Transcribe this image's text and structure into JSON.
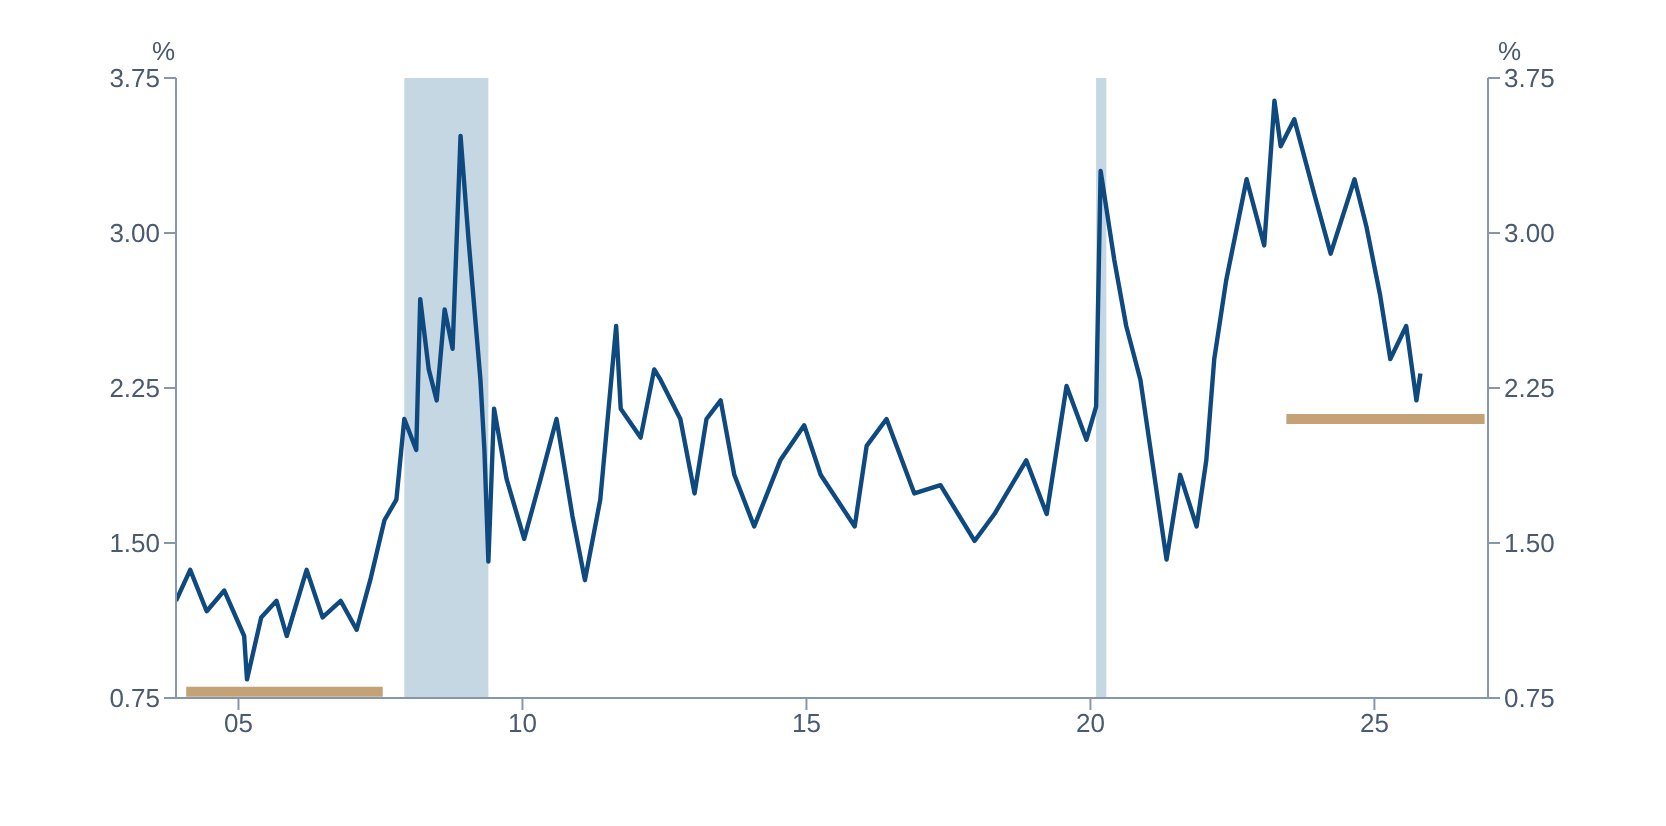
{
  "chart_data": {
    "type": "line",
    "ylabel": "%",
    "y2label": "%",
    "xlim": [
      2003.9,
      2027
    ],
    "xticks": [
      {
        "value": 2005,
        "label": "05"
      },
      {
        "value": 2010,
        "label": "10"
      },
      {
        "value": 2015,
        "label": "15"
      },
      {
        "value": 2020,
        "label": "20"
      },
      {
        "value": 2025,
        "label": "25"
      }
    ],
    "ylim": [
      0.75,
      3.75
    ],
    "yticks": [
      0.75,
      {
        "value": 1.5,
        "label": "1.50"
      },
      2.25,
      {
        "value": 3,
        "label": "3.00"
      },
      3.75
    ],
    "y2lim": [
      0.75,
      3.75
    ],
    "y2ticks": [
      0.75,
      {
        "value": 1.5,
        "label": "1.50"
      },
      2.25,
      {
        "value": 3,
        "label": "3.00"
      },
      3.75
    ],
    "grid": false,
    "legend": false,
    "bands": [
      {
        "axis": "x",
        "from": 2007.92,
        "to": 2009.4,
        "color": "#c5d7e2"
      },
      {
        "axis": "x",
        "from": 2020.1,
        "to": 2020.28,
        "color": "#c5d7e2"
      }
    ],
    "series": [
      {
        "color": "#0e4a80",
        "x": [
          2003.9,
          2004.15,
          2004.44,
          2004.75,
          2005.1,
          2005.15,
          2005.4,
          2005.67,
          2005.85,
          2006.2,
          2006.48,
          2006.8,
          2007.08,
          2007.32,
          2007.57,
          2007.78,
          2007.92,
          2008.13,
          2008.2,
          2008.35,
          2008.49,
          2008.63,
          2008.77,
          2008.91,
          2009.05,
          2009.26,
          2009.33,
          2009.4,
          2009.5,
          2009.72,
          2010.03,
          2010.32,
          2010.6,
          2010.88,
          2011.1,
          2011.37,
          2011.65,
          2011.73,
          2012.08,
          2012.32,
          2012.43,
          2012.78,
          2013.03,
          2013.24,
          2013.49,
          2013.73,
          2014.08,
          2014.54,
          2014.96,
          2015.25,
          2015.85,
          2016.06,
          2016.41,
          2016.9,
          2017.36,
          2017.96,
          2018.31,
          2018.87,
          2019.23,
          2019.58,
          2019.93,
          2020.1,
          2020.18,
          2020.42,
          2020.63,
          2020.88,
          2021.34,
          2021.58,
          2021.87,
          2022.04,
          2022.18,
          2022.39,
          2022.75,
          2023.06,
          2023.24,
          2023.35,
          2023.59,
          2023.94,
          2024.23,
          2024.65,
          2024.86,
          2025.1,
          2025.28,
          2025.56,
          2025.74,
          2025.81
        ],
        "values": [
          1.22,
          1.37,
          1.17,
          1.27,
          1.05,
          0.84,
          1.14,
          1.22,
          1.05,
          1.37,
          1.14,
          1.22,
          1.08,
          1.32,
          1.61,
          1.71,
          2.1,
          1.95,
          2.68,
          2.34,
          2.19,
          2.63,
          2.44,
          3.47,
          2.97,
          2.29,
          1.95,
          1.41,
          2.15,
          1.81,
          1.52,
          1.81,
          2.1,
          1.63,
          1.32,
          1.71,
          2.55,
          2.15,
          2.01,
          2.34,
          2.29,
          2.1,
          1.74,
          2.1,
          2.19,
          1.83,
          1.58,
          1.9,
          2.07,
          1.83,
          1.58,
          1.97,
          2.1,
          1.74,
          1.78,
          1.51,
          1.64,
          1.9,
          1.64,
          2.26,
          2.0,
          2.16,
          3.3,
          2.87,
          2.55,
          2.29,
          1.42,
          1.83,
          1.58,
          1.9,
          2.39,
          2.77,
          3.26,
          2.94,
          3.64,
          3.42,
          3.55,
          3.19,
          2.9,
          3.26,
          3.03,
          2.7,
          2.39,
          2.55,
          2.19,
          2.32
        ]
      },
      {
        "color": "#c4a276",
        "x": [
          2004.08,
          2007.54
        ],
        "values": [
          0.78,
          0.78
        ]
      },
      {
        "color": "#c4a276",
        "x": [
          2023.45,
          2026.94
        ],
        "values": [
          2.1,
          2.1
        ]
      }
    ]
  }
}
